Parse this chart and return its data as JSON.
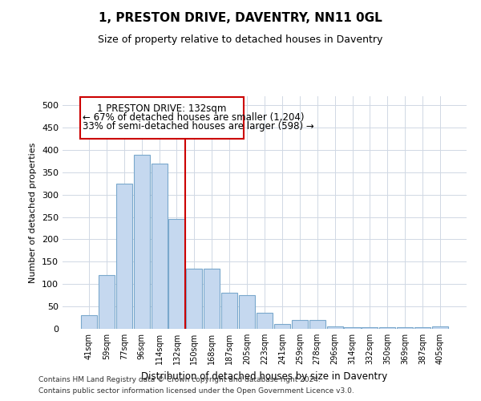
{
  "title": "1, PRESTON DRIVE, DAVENTRY, NN11 0GL",
  "subtitle": "Size of property relative to detached houses in Daventry",
  "xlabel": "Distribution of detached houses by size in Daventry",
  "ylabel": "Number of detached properties",
  "categories": [
    "41sqm",
    "59sqm",
    "77sqm",
    "96sqm",
    "114sqm",
    "132sqm",
    "150sqm",
    "168sqm",
    "187sqm",
    "205sqm",
    "223sqm",
    "241sqm",
    "259sqm",
    "278sqm",
    "296sqm",
    "314sqm",
    "332sqm",
    "350sqm",
    "369sqm",
    "387sqm",
    "405sqm"
  ],
  "values": [
    30,
    120,
    325,
    390,
    370,
    245,
    135,
    135,
    80,
    75,
    35,
    10,
    20,
    20,
    5,
    3,
    3,
    3,
    3,
    3,
    5
  ],
  "bar_color": "#c5d8ef",
  "bar_edge_color": "#7aa8cc",
  "highlight_index": 5,
  "annotation_line1": "1 PRESTON DRIVE: 132sqm",
  "annotation_line2": "← 67% of detached houses are smaller (1,204)",
  "annotation_line3": "33% of semi-detached houses are larger (598) →",
  "annotation_box_color": "white",
  "annotation_box_edge": "#cc0000",
  "ylim": [
    0,
    520
  ],
  "yticks": [
    0,
    50,
    100,
    150,
    200,
    250,
    300,
    350,
    400,
    450,
    500
  ],
  "footer1": "Contains HM Land Registry data © Crown copyright and database right 2024.",
  "footer2": "Contains public sector information licensed under the Open Government Licence v3.0.",
  "background_color": "#ffffff",
  "grid_color": "#d0d8e4"
}
